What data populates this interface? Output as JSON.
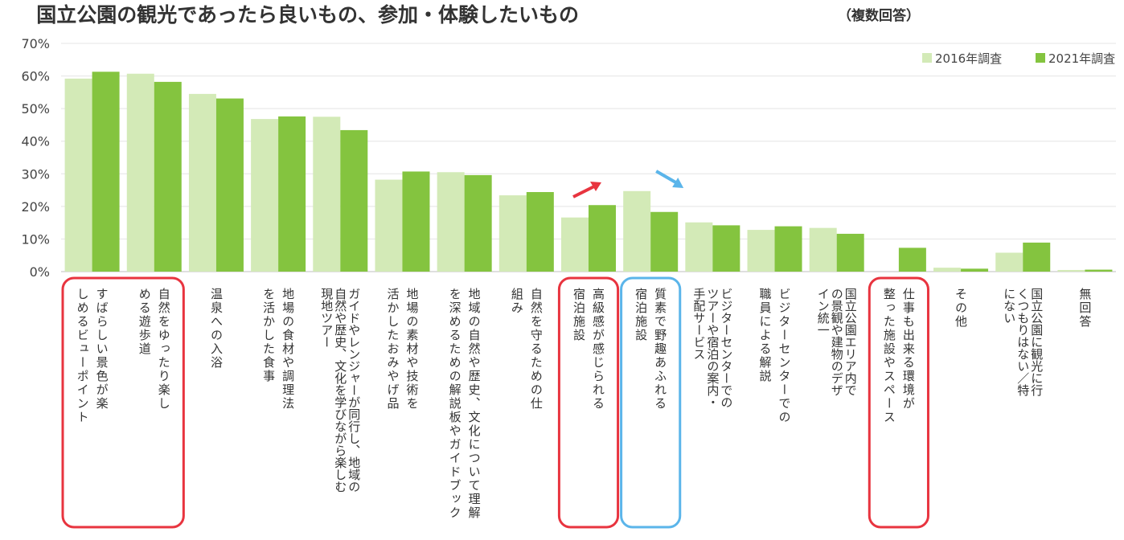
{
  "chart_data": {
    "type": "bar",
    "title": "国立公園の観光であったら良いもの、参加・体験したいもの",
    "subtitle": "（複数回答）",
    "ylim": [
      0,
      70
    ],
    "yticks": [
      "0%",
      "10%",
      "20%",
      "30%",
      "40%",
      "50%",
      "60%",
      "70%"
    ],
    "grid": true,
    "legend_position": "top-right",
    "series": [
      {
        "name": "2016年調査",
        "color": "#d3eab7",
        "values": [
          59.2,
          60.7,
          54.5,
          46.8,
          47.5,
          28.2,
          30.5,
          23.4,
          16.6,
          24.7,
          15.1,
          12.8,
          13.4,
          0.0,
          1.2,
          5.8,
          0.5
        ]
      },
      {
        "name": "2021年調査",
        "color": "#84c43f",
        "values": [
          61.3,
          58.2,
          53.1,
          47.6,
          43.4,
          30.7,
          29.6,
          24.4,
          20.4,
          18.3,
          14.2,
          13.9,
          11.6,
          7.3,
          0.9,
          8.9,
          0.6
        ]
      }
    ],
    "categories": [
      [
        "すばらしい景色が楽",
        "しめるビューポイント"
      ],
      [
        "自然をゆったり楽し",
        "める遊歩道"
      ],
      [
        "温泉への入浴"
      ],
      [
        "地場の食材や調理法",
        "を活かした食事"
      ],
      [
        "ガイドやレンジャーが同行し、地域の",
        "自然や歴史、文化を学びながら楽しむ",
        "現地ツアー"
      ],
      [
        "地場の素材や技術を",
        "活かしたおみやげ品"
      ],
      [
        "地域の自然や歴史、文化について理解",
        "を深めるための解説板やガイドブック"
      ],
      [
        "自然を守るための仕",
        "組み"
      ],
      [
        "高級感が感じられる",
        "宿泊施設"
      ],
      [
        "質素で野趣あふれる",
        "宿泊施設"
      ],
      [
        "ビジターセンターでの",
        "ツアーや宿泊の案内・",
        "手配サービス"
      ],
      [
        "ビジターセンターでの",
        "職員による解説"
      ],
      [
        "国立公園エリア内で",
        "の景観や建物のデザ",
        "イン統一"
      ],
      [
        "仕事も出来る環境が",
        "整った施設やスペース"
      ],
      [
        "その他"
      ],
      [
        "国立公園に観光に行",
        "くつもりはない／特",
        "にない"
      ],
      [
        "無回答"
      ]
    ],
    "annotations": {
      "red_box_color": "#e8343f",
      "blue_box_color": "#5bb5ea",
      "red_boxes": [
        [
          0,
          1
        ],
        [
          8,
          8
        ],
        [
          13,
          13
        ]
      ],
      "blue_boxes": [
        [
          9,
          9
        ]
      ],
      "arrow_up_category": 8,
      "arrow_down_category": 9
    }
  }
}
